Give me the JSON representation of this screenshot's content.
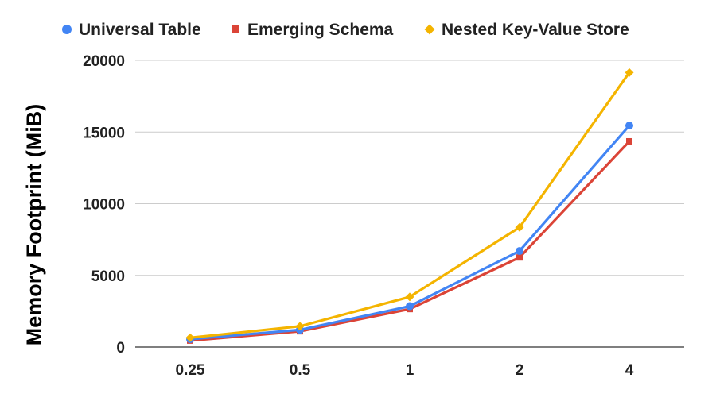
{
  "chart_data": {
    "type": "line",
    "title": "",
    "xlabel": "",
    "ylabel": "Memory Footprint (MiB)",
    "categories": [
      "0.25",
      "0.5",
      "1",
      "2",
      "4"
    ],
    "ylim": [
      0,
      20000
    ],
    "yticks": [
      "0",
      "5000",
      "10000",
      "15000",
      "20000"
    ],
    "grid": true,
    "legend_position": "top",
    "series": [
      {
        "name": "Universal Table",
        "color": "#4285f4",
        "marker": "circle",
        "values": [
          550,
          1200,
          2850,
          6700,
          15450
        ]
      },
      {
        "name": "Emerging Schema",
        "color": "#db4437",
        "marker": "square",
        "values": [
          450,
          1100,
          2650,
          6250,
          14350
        ]
      },
      {
        "name": "Nested Key-Value Store",
        "color": "#f4b400",
        "marker": "diamond",
        "values": [
          650,
          1450,
          3500,
          8350,
          19150
        ]
      }
    ]
  }
}
